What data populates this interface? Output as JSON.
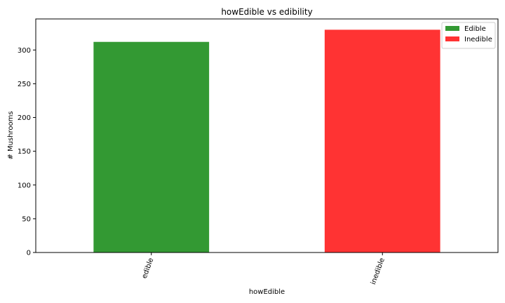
{
  "chart_data": {
    "type": "bar",
    "title": "howEdible vs edibility",
    "xlabel": "howEdible",
    "ylabel": "# Mushrooms",
    "categories": [
      "edible",
      "inedible"
    ],
    "series": [
      {
        "name": "Edible",
        "values": [
          312,
          null
        ],
        "color": "#339933"
      },
      {
        "name": "Inedible",
        "values": [
          null,
          330
        ],
        "color": "#ff3333"
      }
    ],
    "ylim": [
      0,
      346
    ],
    "yticks": [
      0,
      50,
      100,
      150,
      200,
      250,
      300
    ],
    "xtick_rotation": -70,
    "grid": false,
    "legend_position": "top-right"
  }
}
